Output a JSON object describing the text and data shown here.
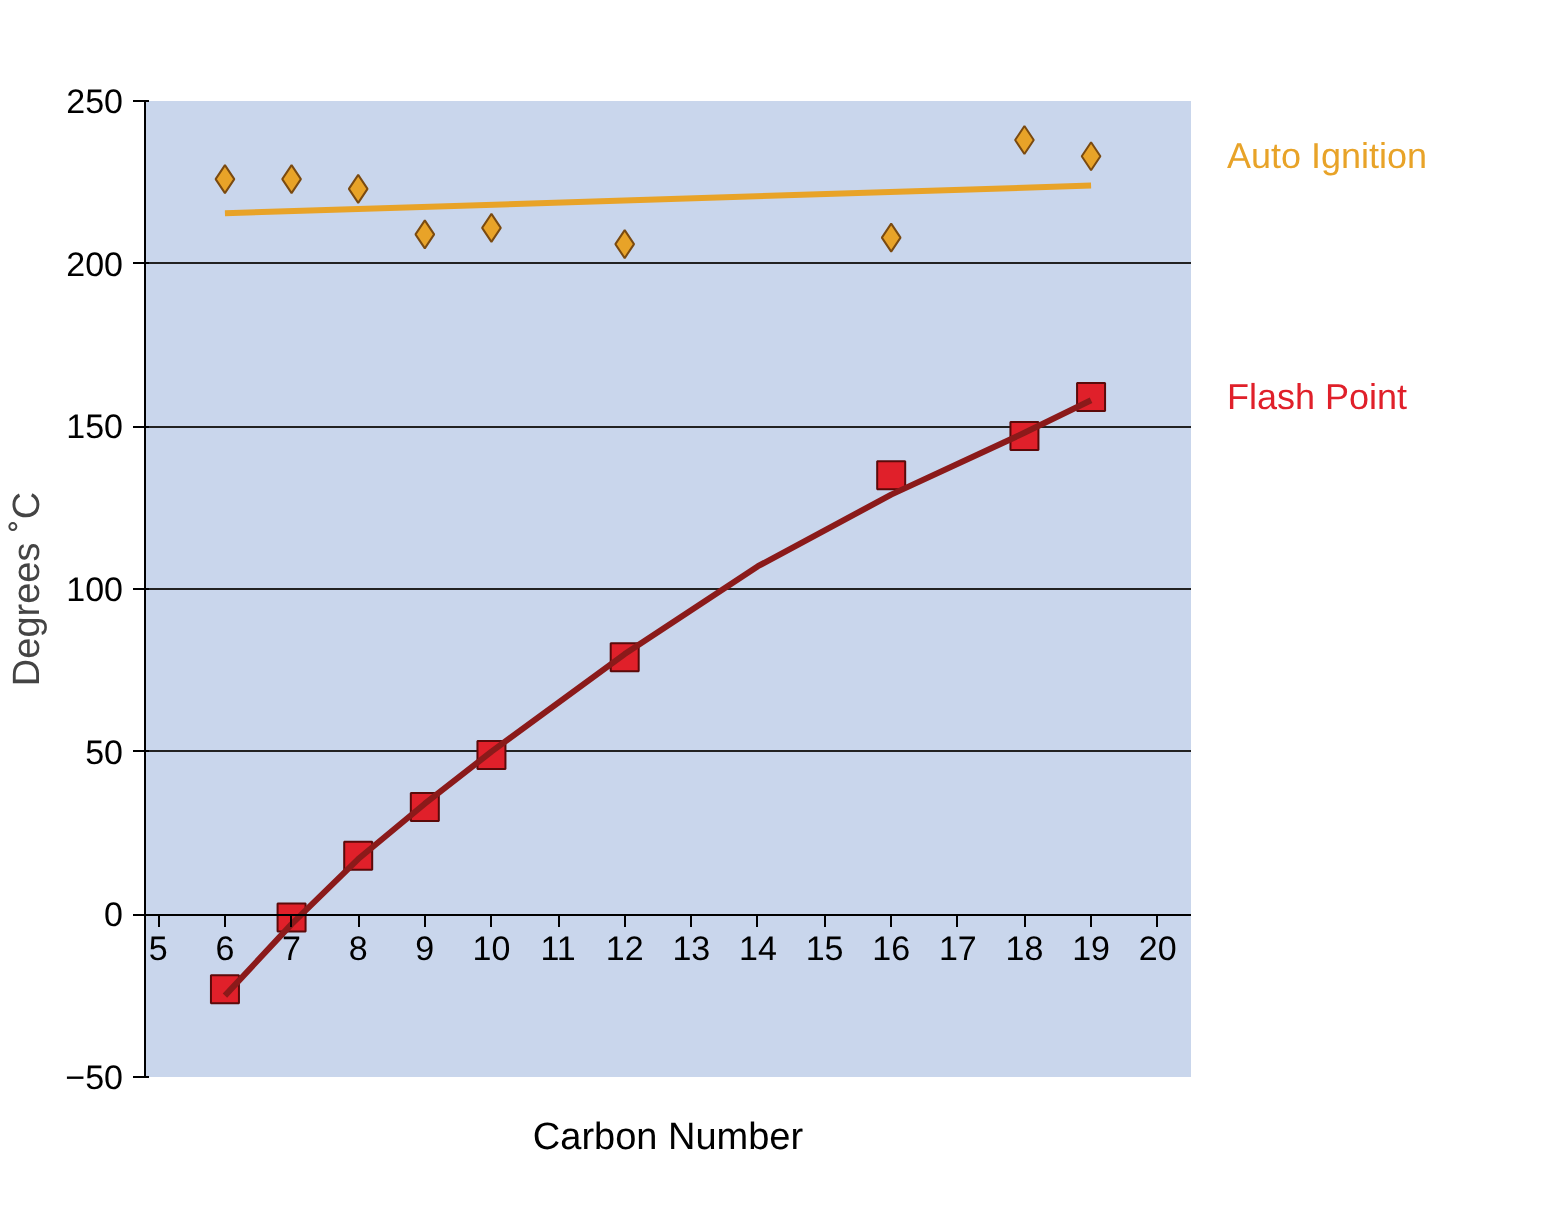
{
  "chart_data": {
    "type": "scatter",
    "xlabel": "Carbon Number",
    "ylabel": "Degrees ˚C",
    "xlim": [
      4.8,
      20.5
    ],
    "ylim": [
      -50,
      250
    ],
    "xticks": [
      5,
      6,
      7,
      8,
      9,
      10,
      11,
      12,
      13,
      14,
      15,
      16,
      17,
      18,
      19,
      20
    ],
    "yticks": [
      -50,
      0,
      50,
      100,
      150,
      200,
      250
    ],
    "grid": "y",
    "series": [
      {
        "name": "Auto Ignition",
        "color": "#e8a328",
        "marker": "diamond",
        "x": [
          6,
          7,
          8,
          9,
          10,
          12,
          16,
          18,
          19
        ],
        "values": [
          226,
          226,
          223,
          209,
          211,
          206,
          208,
          238,
          233
        ]
      },
      {
        "type": "line",
        "color": "#e8a328",
        "x": [
          6,
          19
        ],
        "values": [
          215.5,
          224
        ]
      },
      {
        "name": "Flash Point",
        "color": "#e0202a",
        "marker": "square",
        "x": [
          6,
          7,
          8,
          9,
          10,
          12,
          16,
          18,
          19
        ],
        "values": [
          -23,
          -1,
          18,
          33,
          49,
          79,
          135,
          147,
          159
        ]
      },
      {
        "type": "line",
        "color": "#8b1a1a",
        "x": [
          6,
          7,
          8,
          9,
          10,
          12,
          14,
          16,
          18,
          19
        ],
        "values": [
          -25,
          -3,
          17,
          34,
          50,
          80,
          107,
          129,
          148,
          158
        ]
      }
    ]
  }
}
